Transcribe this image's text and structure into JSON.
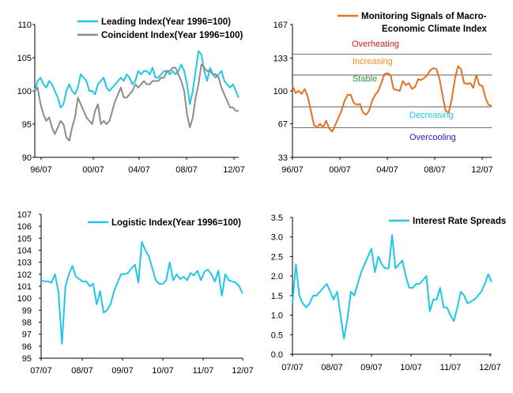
{
  "colors": {
    "cyan": "#1ec8e8",
    "gray": "#8c8c8c",
    "orange": "#e8701e",
    "overheating": "#d02020",
    "increasing": "#f08c1e",
    "stable": "#2a9a3a",
    "decreasing": "#1ec8e8",
    "overcooling": "#2020c0"
  },
  "chart_data": [
    {
      "type": "line",
      "x_ticks": [
        "96/07",
        "00/07",
        "04/07",
        "08/07",
        "12/07"
      ],
      "ylim": [
        90,
        110
      ],
      "y_ticks": [
        "90",
        "95",
        "100",
        "105",
        "110"
      ],
      "series": [
        {
          "name": "Leading Index(Year 1996=100)",
          "color": "#1ec8e8",
          "values": [
            100,
            101.5,
            102,
            101,
            100.5,
            101.5,
            101,
            100,
            99,
            97.5,
            98,
            100,
            101,
            100,
            99.5,
            100.5,
            102.5,
            102,
            101.5,
            100,
            100,
            99.5,
            101,
            101.5,
            102,
            100.5,
            100,
            100.5,
            101,
            101.5,
            102,
            101.5,
            102.5,
            102,
            101,
            101.5,
            103,
            102.5,
            103,
            103,
            102.5,
            103.5,
            102,
            102,
            102.5,
            103,
            103,
            102.5,
            103,
            102.5,
            103,
            104,
            103,
            101,
            98,
            100,
            103,
            106,
            105.5,
            103,
            101.5,
            103.5,
            102.5,
            102,
            102.5,
            103,
            101.5,
            101,
            100.5,
            101,
            100,
            99
          ]
        },
        {
          "name": "Coincident Index(Year 1996=100)",
          "color": "#8c8c8c",
          "values": [
            100,
            100.5,
            98,
            96.5,
            95.5,
            96,
            94.5,
            93.5,
            94.5,
            95.5,
            95,
            93,
            92.5,
            94.5,
            96,
            99,
            98,
            97,
            96,
            95.5,
            95,
            97,
            98,
            95,
            95.5,
            95,
            95.5,
            97,
            98.5,
            99.5,
            100.5,
            99,
            99,
            99.5,
            100,
            101,
            100.5,
            101,
            101.5,
            101,
            101,
            101.5,
            101.5,
            101.5,
            102,
            102,
            103,
            103,
            103.5,
            103.5,
            102.5,
            101.5,
            100,
            96.5,
            94.5,
            96,
            99,
            101,
            104,
            103.5,
            103,
            103,
            102.5,
            102.5,
            102,
            100.5,
            99.5,
            98.5,
            97.5,
            97.5,
            97,
            97
          ]
        }
      ]
    },
    {
      "type": "line",
      "x_ticks": [
        "96/07",
        "00/07",
        "04/07",
        "08/07",
        "12/07"
      ],
      "ylim": [
        33,
        167
      ],
      "y_ticks": [
        "33",
        "67",
        "100",
        "133",
        "167"
      ],
      "bands": [
        {
          "label": "Overheating",
          "y": 138,
          "color": "#d02020"
        },
        {
          "label": "Increasing",
          "y": 118,
          "color": "#f08c1e"
        },
        {
          "label": "Stable",
          "y": 84,
          "color": "#2a9a3a"
        },
        {
          "label": "Decreasing",
          "y": 63,
          "color": "#1ec8e8"
        },
        {
          "label": "Overcooling",
          "y": null,
          "color": "#2020c0"
        }
      ],
      "band_lines": [
        137,
        116,
        84,
        63
      ],
      "series": [
        {
          "name": "Monitoring Signals of Macro-Economic Climate Index",
          "color": "#e8701e",
          "values": [
            105,
            98,
            100,
            97,
            102,
            94,
            80,
            66,
            63,
            67,
            63,
            70,
            62,
            59,
            66,
            73,
            80,
            90,
            96,
            96,
            88,
            86,
            87,
            78,
            76,
            80,
            90,
            96,
            100,
            108,
            117,
            118,
            116,
            102,
            101,
            100,
            110,
            106,
            108,
            102,
            104,
            112,
            111,
            113,
            116,
            121,
            123,
            122,
            112,
            95,
            80,
            78,
            92,
            112,
            125,
            122,
            108,
            107,
            108,
            103,
            116,
            106,
            105,
            93,
            86,
            85
          ]
        }
      ]
    },
    {
      "type": "line",
      "x_ticks": [
        "07/07",
        "08/07",
        "09/07",
        "10/07",
        "11/07",
        "12/07"
      ],
      "ylim": [
        95,
        107
      ],
      "y_ticks": [
        "95",
        "96",
        "97",
        "98",
        "99",
        "100",
        "101",
        "102",
        "103",
        "104",
        "105",
        "106",
        "107"
      ],
      "series": [
        {
          "name": "Logistic Index(Year 1996=100)",
          "color": "#1ec8e8",
          "values": [
            101.5,
            101.4,
            101.4,
            101.3,
            102.0,
            100.5,
            96.2,
            101.0,
            102.0,
            102.7,
            101.8,
            101.6,
            101.4,
            101.4,
            101.0,
            101.2,
            99.5,
            100.6,
            98.8,
            99.0,
            99.5,
            100.6,
            101.3,
            102.0,
            102.0,
            102.1,
            102.5,
            102.8,
            101.3,
            104.7,
            104.0,
            103.5,
            102.5,
            101.5,
            101.2,
            101.2,
            101.5,
            103.0,
            101.5,
            102.0,
            101.6,
            101.8,
            101.5,
            102.1,
            101.9,
            102.3,
            101.5,
            102.2,
            102.4,
            102.0,
            101.4,
            102.3,
            100.2,
            102.0,
            101.5,
            101.4,
            101.3,
            101.0,
            100.4
          ]
        }
      ]
    },
    {
      "type": "line",
      "x_ticks": [
        "07/07",
        "08/07",
        "09/07",
        "10/07",
        "11/07",
        "12/07"
      ],
      "ylim": [
        0,
        3.5
      ],
      "y_ticks": [
        "0.0",
        "0.5",
        "1.0",
        "1.5",
        "2.0",
        "2.5",
        "3.0",
        "3.5"
      ],
      "series": [
        {
          "name": "Interest Rate Spreads",
          "color": "#1ec8e8",
          "values": [
            1.3,
            2.3,
            1.5,
            1.3,
            1.2,
            1.3,
            1.5,
            1.5,
            1.6,
            1.7,
            1.8,
            1.6,
            1.4,
            1.6,
            1.0,
            0.4,
            0.9,
            1.6,
            1.5,
            1.8,
            2.1,
            2.3,
            2.5,
            2.7,
            2.1,
            2.5,
            2.3,
            2.2,
            2.2,
            3.05,
            2.2,
            2.3,
            2.4,
            2.0,
            1.7,
            1.7,
            1.8,
            1.8,
            1.9,
            2.0,
            1.1,
            1.4,
            1.4,
            1.7,
            1.2,
            1.2,
            1.0,
            0.85,
            1.2,
            1.6,
            1.5,
            1.3,
            1.35,
            1.4,
            1.5,
            1.6,
            1.8,
            2.05,
            1.85
          ]
        }
      ]
    }
  ]
}
